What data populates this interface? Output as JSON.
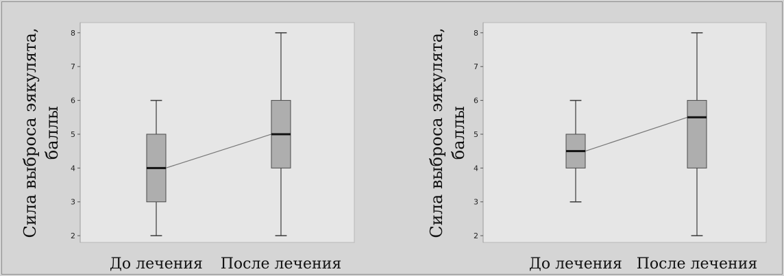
{
  "chart_data": [
    {
      "type": "box",
      "ylabel_lines": [
        "Сила выброса эякулята,",
        "баллы"
      ],
      "categories": [
        "До лечения",
        "После лечения"
      ],
      "ylim": [
        1.8,
        8.3
      ],
      "yticks": [
        2,
        3,
        4,
        5,
        6,
        7,
        8
      ],
      "boxes": [
        {
          "min": 2,
          "q1": 3,
          "median": 4,
          "q3": 5,
          "max": 6
        },
        {
          "min": 2,
          "q1": 4,
          "median": 5,
          "q3": 6,
          "max": 8
        }
      ],
      "median_line": true,
      "grid": false
    },
    {
      "type": "box",
      "ylabel_lines": [
        "Сила выброса эякулята,",
        "баллы"
      ],
      "categories": [
        "До лечения",
        "После лечения"
      ],
      "ylim": [
        1.8,
        8.3
      ],
      "yticks": [
        2,
        3,
        4,
        5,
        6,
        7,
        8
      ],
      "boxes": [
        {
          "min": 3,
          "q1": 4,
          "median": 4.5,
          "q3": 5,
          "max": 6
        },
        {
          "min": 2,
          "q1": 4,
          "median": 5.5,
          "q3": 6,
          "max": 8
        }
      ],
      "median_line": true,
      "grid": false
    }
  ],
  "colors": {
    "plot_bg": "#e6e6e6",
    "box_fill": "#aeaeae",
    "box_stroke": "#4a4a4a",
    "median": "#111111",
    "whisker": "#3a3a3a",
    "connector": "#777777"
  }
}
